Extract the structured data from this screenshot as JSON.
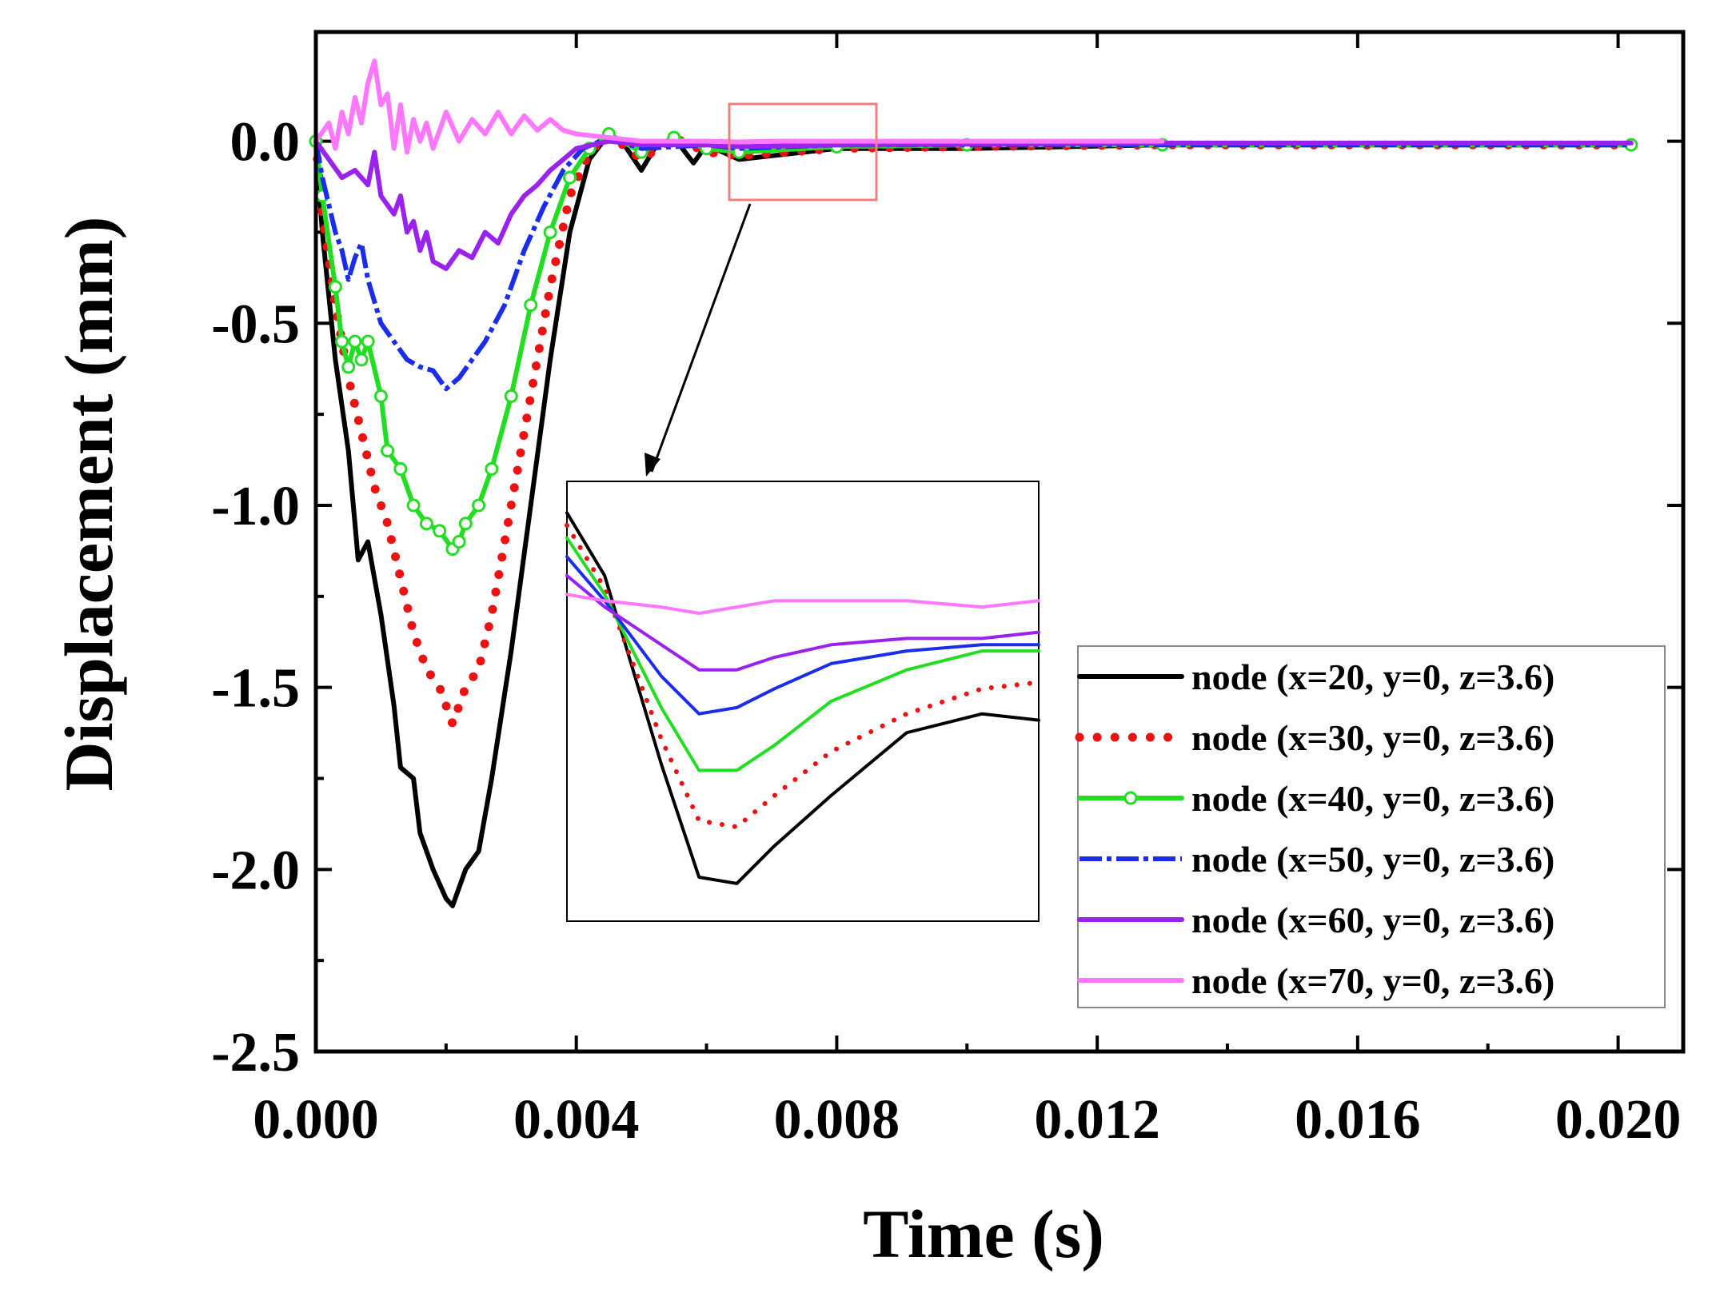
{
  "chart_data": {
    "type": "line",
    "xlabel": "Time (s)",
    "ylabel": "Displacement (mm)",
    "xlim": [
      0.0,
      0.021
    ],
    "ylim": [
      -2.5,
      0.3
    ],
    "x_ticks": [
      0.0,
      0.004,
      0.008,
      0.012,
      0.016,
      0.02
    ],
    "x_tick_labels": [
      "0.000",
      "0.004",
      "0.008",
      "0.012",
      "0.016",
      "0.020"
    ],
    "y_ticks": [
      0.0,
      -0.5,
      -1.0,
      -1.5,
      -2.0,
      -2.5
    ],
    "y_tick_labels": [
      "0.0",
      "-0.5",
      "-1.0",
      "-1.5",
      "-2.0",
      "-2.5"
    ],
    "legend_position": "bottom-right",
    "series": [
      {
        "name": "node (x=20, y=0, z=3.6)",
        "color": "#000000",
        "style": "solid",
        "points": [
          [
            0.0,
            0.0
          ],
          [
            0.0001,
            -0.25
          ],
          [
            0.0003,
            -0.6
          ],
          [
            0.0005,
            -0.85
          ],
          [
            0.0006,
            -1.05
          ],
          [
            0.00065,
            -1.15
          ],
          [
            0.0008,
            -1.1
          ],
          [
            0.001,
            -1.3
          ],
          [
            0.0012,
            -1.55
          ],
          [
            0.0013,
            -1.72
          ],
          [
            0.0015,
            -1.75
          ],
          [
            0.0016,
            -1.9
          ],
          [
            0.0018,
            -2.0
          ],
          [
            0.002,
            -2.08
          ],
          [
            0.0021,
            -2.1
          ],
          [
            0.0022,
            -2.05
          ],
          [
            0.0023,
            -2.0
          ],
          [
            0.0025,
            -1.95
          ],
          [
            0.0027,
            -1.75
          ],
          [
            0.003,
            -1.4
          ],
          [
            0.0033,
            -1.0
          ],
          [
            0.0036,
            -0.6
          ],
          [
            0.0039,
            -0.25
          ],
          [
            0.0042,
            -0.05
          ],
          [
            0.0045,
            0.02
          ],
          [
            0.0047,
            0.0
          ],
          [
            0.005,
            -0.08
          ],
          [
            0.0052,
            -0.02
          ],
          [
            0.0055,
            0.01
          ],
          [
            0.0058,
            -0.06
          ],
          [
            0.006,
            -0.01
          ],
          [
            0.0065,
            -0.05
          ],
          [
            0.007,
            -0.04
          ],
          [
            0.008,
            -0.02
          ],
          [
            0.01,
            -0.02
          ],
          [
            0.013,
            -0.01
          ],
          [
            0.0202,
            -0.01
          ]
        ]
      },
      {
        "name": "node (x=30, y=0, z=3.6)",
        "color": "#ee1111",
        "style": "dotted",
        "points": [
          [
            0.0,
            0.0
          ],
          [
            0.0001,
            -0.2
          ],
          [
            0.0003,
            -0.45
          ],
          [
            0.0005,
            -0.65
          ],
          [
            0.0007,
            -0.8
          ],
          [
            0.0009,
            -0.95
          ],
          [
            0.0011,
            -1.05
          ],
          [
            0.0013,
            -1.2
          ],
          [
            0.0015,
            -1.35
          ],
          [
            0.0017,
            -1.45
          ],
          [
            0.0019,
            -1.5
          ],
          [
            0.0021,
            -1.6
          ],
          [
            0.0023,
            -1.5
          ],
          [
            0.0025,
            -1.45
          ],
          [
            0.0027,
            -1.3
          ],
          [
            0.003,
            -1.0
          ],
          [
            0.0033,
            -0.7
          ],
          [
            0.0036,
            -0.4
          ],
          [
            0.0039,
            -0.15
          ],
          [
            0.0042,
            -0.03
          ],
          [
            0.0045,
            0.02
          ],
          [
            0.005,
            -0.05
          ],
          [
            0.0055,
            0.01
          ],
          [
            0.006,
            -0.03
          ],
          [
            0.0065,
            -0.04
          ],
          [
            0.008,
            -0.02
          ],
          [
            0.01,
            -0.015
          ],
          [
            0.013,
            -0.01
          ],
          [
            0.0202,
            -0.01
          ]
        ]
      },
      {
        "name": "node (x=40, y=0, z=3.6)",
        "color": "#22dd22",
        "style": "solid-circles",
        "points": [
          [
            0.0,
            0.0
          ],
          [
            0.0001,
            -0.15
          ],
          [
            0.0003,
            -0.4
          ],
          [
            0.0004,
            -0.55
          ],
          [
            0.0005,
            -0.62
          ],
          [
            0.0006,
            -0.55
          ],
          [
            0.0007,
            -0.6
          ],
          [
            0.0008,
            -0.55
          ],
          [
            0.001,
            -0.7
          ],
          [
            0.0011,
            -0.85
          ],
          [
            0.0013,
            -0.9
          ],
          [
            0.0015,
            -1.0
          ],
          [
            0.0017,
            -1.05
          ],
          [
            0.0019,
            -1.07
          ],
          [
            0.0021,
            -1.12
          ],
          [
            0.0022,
            -1.1
          ],
          [
            0.0023,
            -1.05
          ],
          [
            0.0025,
            -1.0
          ],
          [
            0.0027,
            -0.9
          ],
          [
            0.003,
            -0.7
          ],
          [
            0.0033,
            -0.45
          ],
          [
            0.0036,
            -0.25
          ],
          [
            0.0039,
            -0.1
          ],
          [
            0.0042,
            -0.02
          ],
          [
            0.0045,
            0.02
          ],
          [
            0.005,
            -0.03
          ],
          [
            0.0055,
            0.01
          ],
          [
            0.006,
            -0.02
          ],
          [
            0.0065,
            -0.03
          ],
          [
            0.008,
            -0.015
          ],
          [
            0.01,
            -0.01
          ],
          [
            0.013,
            -0.01
          ],
          [
            0.0202,
            -0.01
          ]
        ]
      },
      {
        "name": "node (x=50, y=0, z=3.6)",
        "color": "#1a2eea",
        "style": "dash-dot",
        "points": [
          [
            0.0,
            0.0
          ],
          [
            0.0001,
            -0.1
          ],
          [
            0.0003,
            -0.25
          ],
          [
            0.0004,
            -0.3
          ],
          [
            0.0005,
            -0.38
          ],
          [
            0.0006,
            -0.32
          ],
          [
            0.0007,
            -0.28
          ],
          [
            0.0008,
            -0.38
          ],
          [
            0.001,
            -0.5
          ],
          [
            0.0012,
            -0.55
          ],
          [
            0.0014,
            -0.6
          ],
          [
            0.0016,
            -0.62
          ],
          [
            0.0018,
            -0.63
          ],
          [
            0.002,
            -0.68
          ],
          [
            0.0022,
            -0.65
          ],
          [
            0.0024,
            -0.6
          ],
          [
            0.0026,
            -0.55
          ],
          [
            0.0029,
            -0.45
          ],
          [
            0.0032,
            -0.3
          ],
          [
            0.0035,
            -0.18
          ],
          [
            0.0038,
            -0.08
          ],
          [
            0.0041,
            -0.02
          ],
          [
            0.0045,
            0.01
          ],
          [
            0.005,
            -0.02
          ],
          [
            0.006,
            -0.01
          ],
          [
            0.0065,
            -0.02
          ],
          [
            0.008,
            -0.01
          ],
          [
            0.01,
            -0.01
          ],
          [
            0.013,
            -0.01
          ],
          [
            0.0202,
            -0.01
          ]
        ]
      },
      {
        "name": "node (x=60, y=0, z=3.6)",
        "color": "#9922ee",
        "style": "solid",
        "points": [
          [
            0.0,
            0.0
          ],
          [
            0.0002,
            -0.05
          ],
          [
            0.0004,
            -0.1
          ],
          [
            0.0006,
            -0.08
          ],
          [
            0.0008,
            -0.12
          ],
          [
            0.0009,
            -0.03
          ],
          [
            0.001,
            -0.15
          ],
          [
            0.0012,
            -0.2
          ],
          [
            0.0013,
            -0.15
          ],
          [
            0.0014,
            -0.25
          ],
          [
            0.0015,
            -0.22
          ],
          [
            0.0016,
            -0.3
          ],
          [
            0.0017,
            -0.25
          ],
          [
            0.0018,
            -0.33
          ],
          [
            0.002,
            -0.35
          ],
          [
            0.0022,
            -0.3
          ],
          [
            0.0024,
            -0.32
          ],
          [
            0.0026,
            -0.25
          ],
          [
            0.0028,
            -0.28
          ],
          [
            0.003,
            -0.2
          ],
          [
            0.0032,
            -0.15
          ],
          [
            0.0034,
            -0.12
          ],
          [
            0.0036,
            -0.08
          ],
          [
            0.0038,
            -0.05
          ],
          [
            0.004,
            -0.02
          ],
          [
            0.0045,
            0.0
          ],
          [
            0.005,
            -0.01
          ],
          [
            0.006,
            -0.01
          ],
          [
            0.0065,
            -0.015
          ],
          [
            0.008,
            -0.01
          ],
          [
            0.013,
            -0.005
          ],
          [
            0.0202,
            -0.005
          ]
        ]
      },
      {
        "name": "node (x=70, y=0, z=3.6)",
        "color": "#ff77ff",
        "style": "solid",
        "points": [
          [
            0.0,
            0.0
          ],
          [
            0.0002,
            0.05
          ],
          [
            0.0003,
            -0.02
          ],
          [
            0.0004,
            0.08
          ],
          [
            0.0005,
            0.02
          ],
          [
            0.0006,
            0.12
          ],
          [
            0.0007,
            0.05
          ],
          [
            0.0008,
            0.16
          ],
          [
            0.0009,
            0.22
          ],
          [
            0.001,
            0.1
          ],
          [
            0.0011,
            0.13
          ],
          [
            0.0012,
            -0.02
          ],
          [
            0.0013,
            0.1
          ],
          [
            0.0014,
            -0.03
          ],
          [
            0.0015,
            0.06
          ],
          [
            0.0016,
            0.0
          ],
          [
            0.0017,
            0.05
          ],
          [
            0.0018,
            -0.02
          ],
          [
            0.002,
            0.08
          ],
          [
            0.0022,
            0.0
          ],
          [
            0.0024,
            0.06
          ],
          [
            0.0026,
            0.02
          ],
          [
            0.0028,
            0.08
          ],
          [
            0.003,
            0.02
          ],
          [
            0.0032,
            0.07
          ],
          [
            0.0034,
            0.03
          ],
          [
            0.0036,
            0.06
          ],
          [
            0.0038,
            0.03
          ],
          [
            0.004,
            0.02
          ],
          [
            0.0045,
            0.01
          ],
          [
            0.005,
            0.0
          ],
          [
            0.006,
            0.0
          ],
          [
            0.0065,
            -0.002
          ],
          [
            0.007,
            0.0
          ],
          [
            0.008,
            0.0
          ],
          [
            0.013,
            0.0
          ]
        ]
      }
    ],
    "inset": {
      "annotation": "zoomed view of region near t=0.007 s",
      "xlim": [
        0.006,
        0.0085
      ],
      "ylim": [
        -0.065,
        0.005
      ],
      "series": [
        {
          "name": "node (x=20, y=0, z=3.6)",
          "points": [
            [
              0.006,
              0.0
            ],
            [
              0.0062,
              -0.01
            ],
            [
              0.0065,
              -0.04
            ],
            [
              0.0067,
              -0.058
            ],
            [
              0.0069,
              -0.059
            ],
            [
              0.0071,
              -0.053
            ],
            [
              0.0074,
              -0.045
            ],
            [
              0.0078,
              -0.035
            ],
            [
              0.0082,
              -0.032
            ],
            [
              0.0085,
              -0.033
            ]
          ]
        },
        {
          "name": "node (x=30, y=0, z=3.6)",
          "points": [
            [
              0.006,
              -0.002
            ],
            [
              0.0062,
              -0.012
            ],
            [
              0.0065,
              -0.036
            ],
            [
              0.0067,
              -0.049
            ],
            [
              0.0069,
              -0.05
            ],
            [
              0.0071,
              -0.045
            ],
            [
              0.0074,
              -0.038
            ],
            [
              0.0078,
              -0.032
            ],
            [
              0.0082,
              -0.028
            ],
            [
              0.0085,
              -0.027
            ]
          ]
        },
        {
          "name": "node (x=40, y=0, z=3.6)",
          "points": [
            [
              0.006,
              -0.004
            ],
            [
              0.0062,
              -0.013
            ],
            [
              0.0065,
              -0.031
            ],
            [
              0.0067,
              -0.041
            ],
            [
              0.0069,
              -0.041
            ],
            [
              0.0071,
              -0.037
            ],
            [
              0.0074,
              -0.03
            ],
            [
              0.0078,
              -0.025
            ],
            [
              0.0082,
              -0.022
            ],
            [
              0.0085,
              -0.022
            ]
          ]
        },
        {
          "name": "node (x=50, y=0, z=3.6)",
          "points": [
            [
              0.006,
              -0.007
            ],
            [
              0.0062,
              -0.014
            ],
            [
              0.0065,
              -0.026
            ],
            [
              0.0067,
              -0.032
            ],
            [
              0.0069,
              -0.031
            ],
            [
              0.0071,
              -0.028
            ],
            [
              0.0074,
              -0.024
            ],
            [
              0.0078,
              -0.022
            ],
            [
              0.0082,
              -0.021
            ],
            [
              0.0085,
              -0.021
            ]
          ]
        },
        {
          "name": "node (x=60, y=0, z=3.6)",
          "points": [
            [
              0.006,
              -0.01
            ],
            [
              0.0062,
              -0.015
            ],
            [
              0.0065,
              -0.021
            ],
            [
              0.0067,
              -0.025
            ],
            [
              0.0069,
              -0.025
            ],
            [
              0.0071,
              -0.023
            ],
            [
              0.0074,
              -0.021
            ],
            [
              0.0078,
              -0.02
            ],
            [
              0.0082,
              -0.02
            ],
            [
              0.0085,
              -0.019
            ]
          ]
        },
        {
          "name": "node (x=70, y=0, z=3.6)",
          "points": [
            [
              0.006,
              -0.013
            ],
            [
              0.0062,
              -0.014
            ],
            [
              0.0065,
              -0.015
            ],
            [
              0.0067,
              -0.016
            ],
            [
              0.0069,
              -0.015
            ],
            [
              0.0071,
              -0.014
            ],
            [
              0.0074,
              -0.014
            ],
            [
              0.0078,
              -0.014
            ],
            [
              0.0082,
              -0.015
            ],
            [
              0.0085,
              -0.014
            ]
          ]
        }
      ]
    }
  }
}
